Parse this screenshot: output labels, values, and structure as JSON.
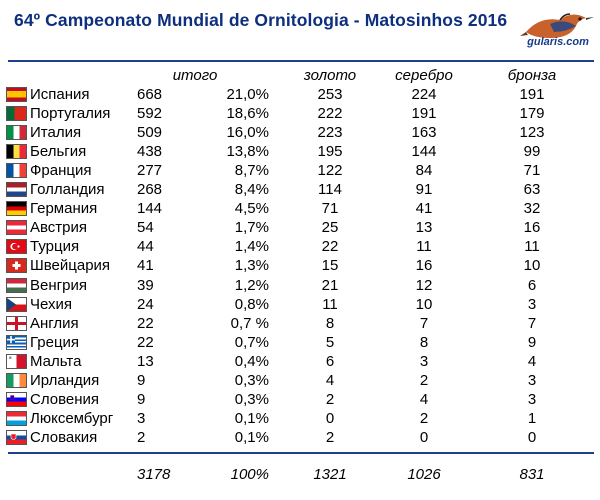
{
  "title": "64º Campeonato Mundial de Ornitologia - Matosinhos 2016",
  "logo_text": "gularis.com",
  "headers": {
    "total": "итого",
    "gold": "золото",
    "silver": "серебро",
    "bronze": "бронза"
  },
  "rows": [
    {
      "country": "Испания",
      "flag": "spain",
      "total": "668",
      "pct": "21,0%",
      "gold": "253",
      "silver": "224",
      "bronze": "191"
    },
    {
      "country": "Португалия",
      "flag": "portugal",
      "total": "592",
      "pct": "18,6%",
      "gold": "222",
      "silver": "191",
      "bronze": "179"
    },
    {
      "country": "Италия",
      "flag": "italy",
      "total": "509",
      "pct": "16,0%",
      "gold": "223",
      "silver": "163",
      "bronze": "123"
    },
    {
      "country": "Бельгия",
      "flag": "belgium",
      "total": "438",
      "pct": "13,8%",
      "gold": "195",
      "silver": "144",
      "bronze": "99"
    },
    {
      "country": "Франция",
      "flag": "france",
      "total": "277",
      "pct": "8,7%",
      "gold": "122",
      "silver": "84",
      "bronze": "71"
    },
    {
      "country": "Голландия",
      "flag": "netherlands",
      "total": "268",
      "pct": "8,4%",
      "gold": "114",
      "silver": "91",
      "bronze": "63"
    },
    {
      "country": "Германия",
      "flag": "germany",
      "total": "144",
      "pct": "4,5%",
      "gold": "71",
      "silver": "41",
      "bronze": "32"
    },
    {
      "country": "Австрия",
      "flag": "austria",
      "total": "54",
      "pct": "1,7%",
      "gold": "25",
      "silver": "13",
      "bronze": "16"
    },
    {
      "country": "Турция",
      "flag": "turkey",
      "total": "44",
      "pct": "1,4%",
      "gold": "22",
      "silver": "11",
      "bronze": "11"
    },
    {
      "country": "Швейцария",
      "flag": "switzerland",
      "total": "41",
      "pct": "1,3%",
      "gold": "15",
      "silver": "16",
      "bronze": "10"
    },
    {
      "country": "Венгрия",
      "flag": "hungary",
      "total": "39",
      "pct": "1,2%",
      "gold": "21",
      "silver": "12",
      "bronze": "6"
    },
    {
      "country": "Чехия",
      "flag": "czech",
      "total": "24",
      "pct": "0,8%",
      "gold": "11",
      "silver": "10",
      "bronze": "3"
    },
    {
      "country": "Англия",
      "flag": "england",
      "total": "22",
      "pct": "0,7 %",
      "gold": "8",
      "silver": "7",
      "bronze": "7"
    },
    {
      "country": "Греция",
      "flag": "greece",
      "total": "22",
      "pct": "0,7%",
      "gold": "5",
      "silver": "8",
      "bronze": "9"
    },
    {
      "country": "Мальта",
      "flag": "malta",
      "total": "13",
      "pct": "0,4%",
      "gold": "6",
      "silver": "3",
      "bronze": "4"
    },
    {
      "country": "Ирландия",
      "flag": "ireland",
      "total": "9",
      "pct": "0,3%",
      "gold": "4",
      "silver": "2",
      "bronze": "3"
    },
    {
      "country": "Словения",
      "flag": "slovenia",
      "total": "9",
      "pct": "0,3%",
      "gold": "2",
      "silver": "4",
      "bronze": "3"
    },
    {
      "country": "Люксембург",
      "flag": "luxembourg",
      "total": "3",
      "pct": "0,1%",
      "gold": "0",
      "silver": "2",
      "bronze": "1"
    },
    {
      "country": "Словакия",
      "flag": "slovakia",
      "total": "2",
      "pct": "0,1%",
      "gold": "2",
      "silver": "0",
      "bronze": "0"
    }
  ],
  "totals": {
    "total": "3178",
    "pct": "100%",
    "gold": "1321",
    "silver": "1026",
    "bronze": "831"
  },
  "colors": {
    "title": "#0d2f7e",
    "rule": "#1f3f8f"
  }
}
